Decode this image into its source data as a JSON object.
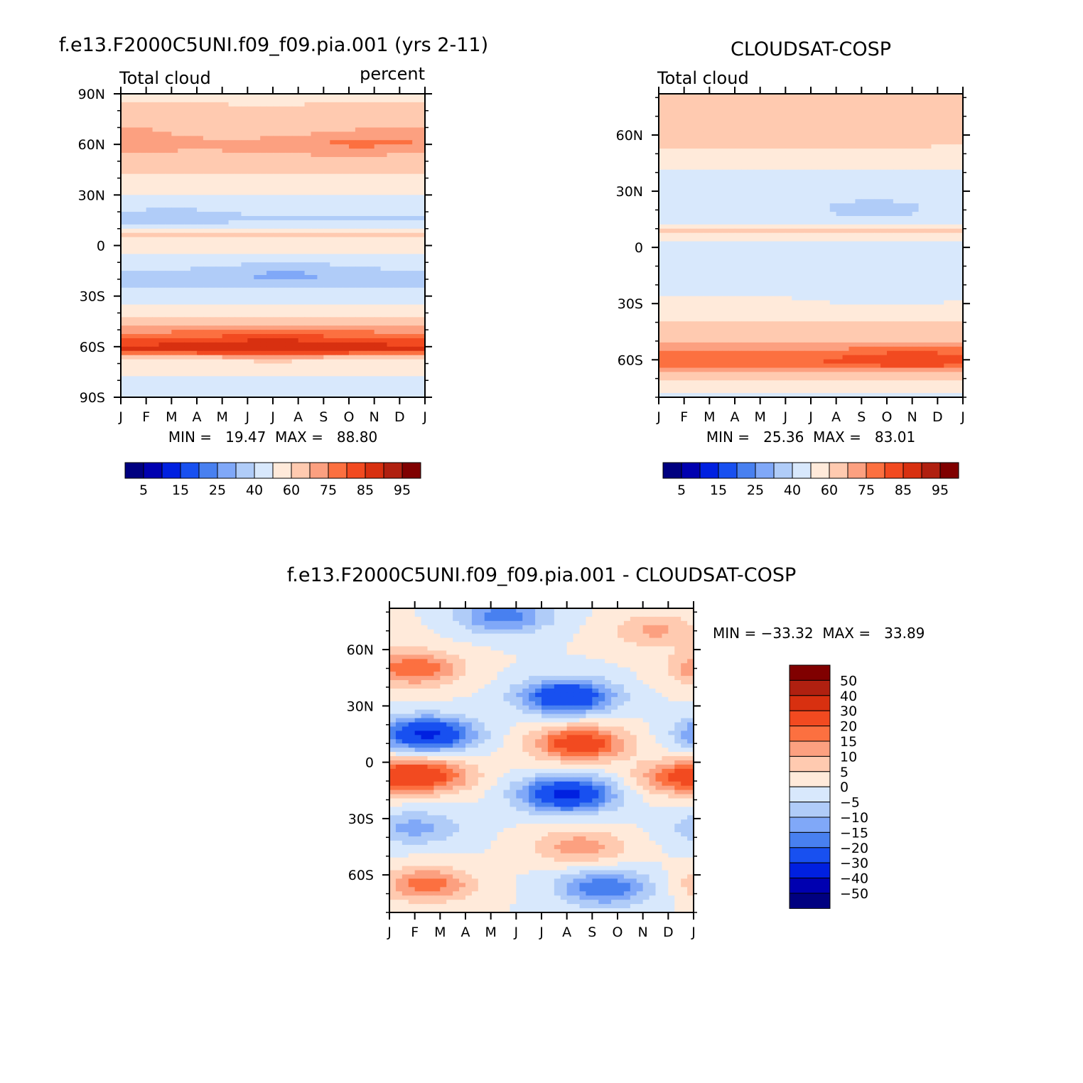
{
  "chart_data": [
    {
      "type": "heatmap",
      "title": "f.e13.F2000C5UNI.f09_f09.pia.001 (yrs 2-11)",
      "subtitle_left": "Total cloud",
      "subtitle_right": "percent",
      "x_tick_labels": [
        "J",
        "F",
        "M",
        "A",
        "M",
        "J",
        "J",
        "A",
        "S",
        "O",
        "N",
        "D",
        "J"
      ],
      "y_tick_labels": [
        "90N",
        "60N",
        "30N",
        "0",
        "30S",
        "60S",
        "90S"
      ],
      "ylim": [
        -90,
        90
      ],
      "stats": "MIN =   19.47  MAX =   88.80",
      "min": 19.47,
      "max": 88.8,
      "colorbar_labels": [
        "5",
        "15",
        "25",
        "40",
        "60",
        "75",
        "85",
        "95"
      ],
      "profile": {
        "lat": [
          90,
          75,
          60,
          45,
          30,
          15,
          7,
          0,
          -10,
          -20,
          -30,
          -40,
          -50,
          -58,
          -62,
          -70,
          -80,
          -90
        ],
        "values": [
          58,
          63,
          71,
          63,
          49,
          38,
          63,
          56,
          45,
          33,
          45,
          55,
          73,
          84,
          86,
          55,
          48,
          50
        ]
      }
    },
    {
      "type": "heatmap",
      "title": "CLOUDSAT-COSP",
      "subtitle_left": "Total cloud",
      "x_tick_labels": [
        "J",
        "F",
        "M",
        "A",
        "M",
        "J",
        "J",
        "A",
        "S",
        "O",
        "N",
        "D",
        "J"
      ],
      "y_tick_labels": [
        "60N",
        "30N",
        "0",
        "30S",
        "60S"
      ],
      "ylim": [
        -80,
        82
      ],
      "stats": "MIN =   25.36  MAX =   83.01",
      "min": 25.36,
      "max": 83.01,
      "colorbar_labels": [
        "5",
        "15",
        "25",
        "40",
        "60",
        "75",
        "85",
        "95"
      ],
      "profile": {
        "lat": [
          82,
          75,
          65,
          55,
          45,
          35,
          25,
          15,
          10,
          5,
          0,
          -10,
          -20,
          -30,
          -40,
          -50,
          -58,
          -62,
          -70,
          -76,
          -80
        ],
        "values": [
          64,
          66,
          66,
          61,
          52,
          44,
          43,
          44,
          62,
          54,
          45,
          44,
          48,
          52,
          60,
          70,
          79,
          80,
          62,
          52,
          48
        ]
      }
    },
    {
      "type": "heatmap",
      "title": "f.e13.F2000C5UNI.f09_f09.pia.001 - CLOUDSAT-COSP",
      "x_tick_labels": [
        "J",
        "F",
        "M",
        "A",
        "M",
        "J",
        "J",
        "A",
        "S",
        "O",
        "N",
        "D",
        "J"
      ],
      "y_tick_labels": [
        "60N",
        "30N",
        "0",
        "30S",
        "60S"
      ],
      "ylim": [
        -80,
        82
      ],
      "stats": "MIN = −33.32  MAX =   33.89",
      "min": -33.32,
      "max": 33.89,
      "colorbar_labels": [
        "50",
        "40",
        "30",
        "20",
        "15",
        "10",
        "5",
        "0",
        "−5",
        "−10",
        "−15",
        "−20",
        "−30",
        "−40",
        "−50"
      ],
      "features": [
        {
          "month": 1.0,
          "lat": 50,
          "value": 20
        },
        {
          "month": 1.5,
          "lat": 15,
          "value": -32
        },
        {
          "month": 7.0,
          "lat": 35,
          "value": -30
        },
        {
          "month": 4.5,
          "lat": 78,
          "value": -18
        },
        {
          "month": 7.5,
          "lat": 10,
          "value": 26
        },
        {
          "month": 1.5,
          "lat": -7,
          "value": 22
        },
        {
          "month": 7.0,
          "lat": -17,
          "value": -33
        },
        {
          "month": 7.5,
          "lat": -45,
          "value": 13
        },
        {
          "month": 1.0,
          "lat": -35,
          "value": -12
        },
        {
          "month": 1.5,
          "lat": -65,
          "value": 18
        },
        {
          "month": 8.5,
          "lat": -67,
          "value": -20
        },
        {
          "month": 11.5,
          "lat": -8,
          "value": 18
        },
        {
          "month": 10.5,
          "lat": 70,
          "value": 11
        }
      ]
    }
  ],
  "colors": {
    "abs_palette": [
      "#000080",
      "#0000b0",
      "#0020e0",
      "#1850f0",
      "#4880f0",
      "#80a8f8",
      "#b0ccf8",
      "#d8e8fc",
      "#ffeada",
      "#ffcab0",
      "#fca080",
      "#fc7040",
      "#f24a20",
      "#d83010",
      "#b02010",
      "#800000"
    ],
    "diff_palette": [
      "#000080",
      "#0000b0",
      "#0020e0",
      "#1850f0",
      "#4880f0",
      "#80a8f8",
      "#b0ccf8",
      "#d8e8fc",
      "#ffeada",
      "#ffcab0",
      "#fca080",
      "#fc7040",
      "#f24a20",
      "#d83010",
      "#b02010",
      "#800000"
    ]
  }
}
